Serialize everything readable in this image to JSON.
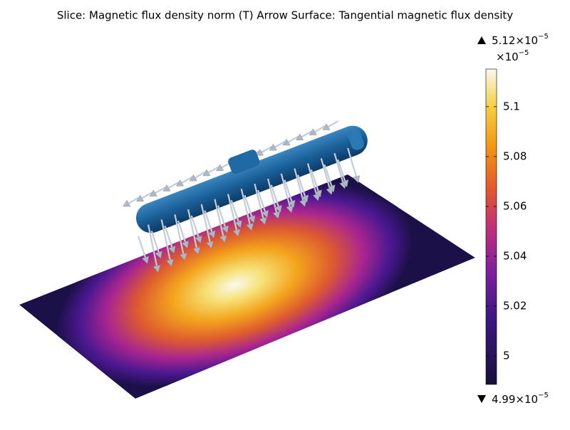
{
  "title": "Slice: Magnetic flux density norm (T)  Arrow Surface: Tangential magnetic flux density",
  "colorbar": {
    "max": {
      "text": "5.12×10",
      "exponent": "−5"
    },
    "multiplier": {
      "text": "×10",
      "exponent": "−5"
    },
    "min": {
      "text": "4.99×10",
      "exponent": "−5"
    },
    "range": [
      4.9886,
      5.1151
    ],
    "ticks": [
      5,
      5.02,
      5.04,
      5.06,
      5.08,
      5.1
    ]
  }
}
